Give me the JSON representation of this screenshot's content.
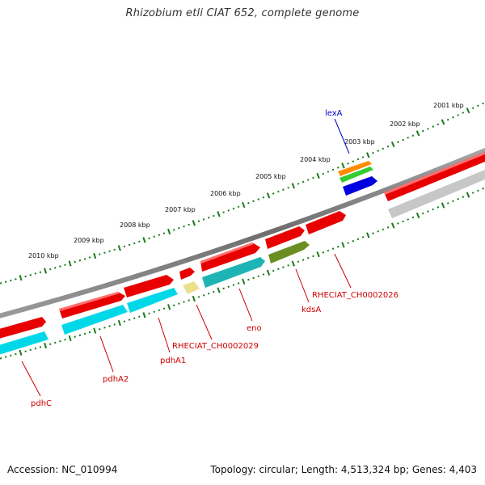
{
  "title": "Rhizobium etli CIAT 652, complete genome",
  "footer": {
    "accession": "Accession: NC_010994",
    "summary": "Topology: circular; Length: 4,513,324 bp; Genes: 4,403"
  },
  "colors": {
    "backbone": "#7a7a7a",
    "tick": "#1a7a1a",
    "forward_gene": "#e80000",
    "reverse_gene": "#00d8e8",
    "gene_label": "#cc0000",
    "lexA_label": "#0000cc",
    "teal": "#1fb4b4",
    "olive": "#6b8e23",
    "pale_yellow": "#ece08c",
    "grey": "#bdbdbd",
    "orange": "#ff8c00",
    "green": "#33cc33",
    "blue": "#0000e0"
  },
  "axis_ticks": [
    {
      "label": "2010 kbp"
    },
    {
      "label": "2009 kbp"
    },
    {
      "label": "2008 kbp"
    },
    {
      "label": "2007 kbp"
    },
    {
      "label": "2006 kbp"
    },
    {
      "label": "2005 kbp"
    },
    {
      "label": "2004 kbp"
    },
    {
      "label": "2003 kbp"
    },
    {
      "label": "2002 kbp"
    },
    {
      "label": "2001 kbp"
    }
  ],
  "gene_labels": [
    {
      "name": "pdhC"
    },
    {
      "name": "pdhA2"
    },
    {
      "name": "pdhA1"
    },
    {
      "name": "RHECIAT_CH0002029"
    },
    {
      "name": "eno"
    },
    {
      "name": "kdsA"
    },
    {
      "name": "RHECIAT_CH0002026"
    },
    {
      "name": "lexA"
    }
  ]
}
